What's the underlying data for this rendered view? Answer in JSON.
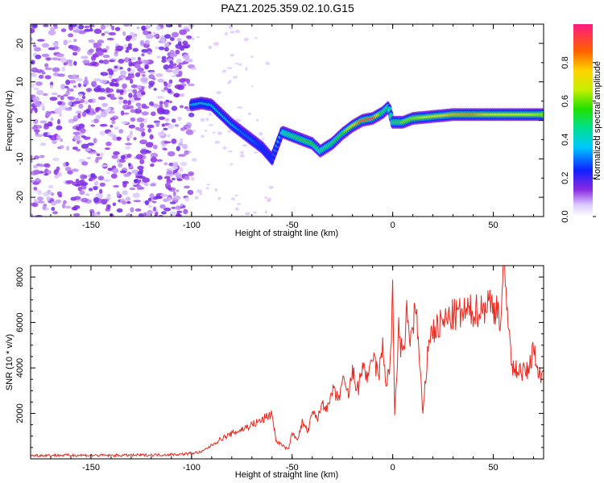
{
  "chart_data": [
    {
      "type": "heatmap",
      "title": "PAZ1.2025.359.02.10.G15",
      "xlabel": "Height of straight line (km)",
      "ylabel": "Frequency (Hz)",
      "xlim": [
        -180,
        75
      ],
      "ylim": [
        -25,
        25
      ],
      "xticks": [
        -150,
        -100,
        -50,
        0,
        50
      ],
      "yticks": [
        -20,
        -10,
        0,
        10,
        20
      ],
      "colorbar": {
        "label": "Normalized spectral amplitude",
        "range": [
          0,
          1
        ],
        "ticks": [
          0.0,
          0.2,
          0.4,
          0.6,
          0.8
        ]
      },
      "ridge": {
        "x": [
          -100,
          -95,
          -90,
          -85,
          -80,
          -75,
          -70,
          -65,
          -60,
          -55,
          -50,
          -45,
          -40,
          -36,
          -30,
          -25,
          -20,
          -15,
          -10,
          -5,
          -2,
          0,
          5,
          10,
          20,
          30,
          40,
          50,
          60,
          70,
          75
        ],
        "freq": [
          4,
          4.5,
          4,
          1.5,
          -1,
          -3,
          -5,
          -7,
          -10,
          -3,
          -4,
          -5,
          -6,
          -8,
          -6,
          -3.5,
          -1.5,
          0,
          0.5,
          2,
          3.5,
          -0.5,
          -0.5,
          0.5,
          1,
          1.5,
          1.5,
          1.5,
          1.5,
          1.5,
          1.5
        ],
        "amp": [
          0.35,
          0.4,
          0.35,
          0.4,
          0.35,
          0.3,
          0.3,
          0.25,
          0.25,
          0.4,
          0.5,
          0.55,
          0.55,
          0.45,
          0.5,
          0.55,
          0.7,
          0.9,
          0.95,
          0.5,
          0.45,
          0.5,
          0.6,
          0.6,
          0.7,
          0.8,
          0.85,
          0.7,
          0.7,
          0.65,
          0.6
        ]
      }
    },
    {
      "type": "line",
      "xlabel": "Height of straight line (km)",
      "ylabel": "SNR (10 * v/v)",
      "xlim": [
        -180,
        75
      ],
      "ylim": [
        0,
        8500
      ],
      "xticks": [
        -150,
        -100,
        -50,
        0,
        50
      ],
      "yticks": [
        2000,
        4000,
        6000,
        8000
      ],
      "series": [
        {
          "name": "SNR",
          "color": "#e8281e",
          "x": [
            -180,
            -160,
            -140,
            -120,
            -105,
            -95,
            -90,
            -85,
            -80,
            -75,
            -70,
            -65,
            -60,
            -58,
            -55,
            -52,
            -50,
            -47,
            -45,
            -42,
            -40,
            -37,
            -35,
            -32,
            -30,
            -27,
            -25,
            -22,
            -20,
            -17,
            -15,
            -12,
            -10,
            -7,
            -5,
            -3,
            -1,
            0,
            1,
            3,
            5,
            7,
            9,
            11,
            12,
            15,
            18,
            20,
            25,
            30,
            35,
            40,
            45,
            48,
            50,
            52,
            53,
            54,
            55,
            57,
            58,
            59,
            60,
            62,
            65,
            68,
            70,
            72,
            75
          ],
          "y": [
            150,
            160,
            150,
            170,
            200,
            300,
            600,
            900,
            1100,
            1300,
            1500,
            1700,
            2000,
            800,
            600,
            400,
            1100,
            900,
            1600,
            1200,
            2000,
            1800,
            2500,
            2200,
            3000,
            2600,
            3400,
            2800,
            3800,
            3000,
            4200,
            3400,
            4600,
            3600,
            4900,
            3200,
            4500,
            7100,
            2000,
            5700,
            4300,
            6300,
            5200,
            6600,
            6100,
            1900,
            5400,
            5600,
            6000,
            6300,
            6400,
            6500,
            6600,
            7000,
            6500,
            6900,
            6100,
            6400,
            8400,
            6500,
            6200,
            4000,
            3900,
            4000,
            3800,
            3900,
            5200,
            3700,
            3800
          ]
        }
      ]
    }
  ]
}
